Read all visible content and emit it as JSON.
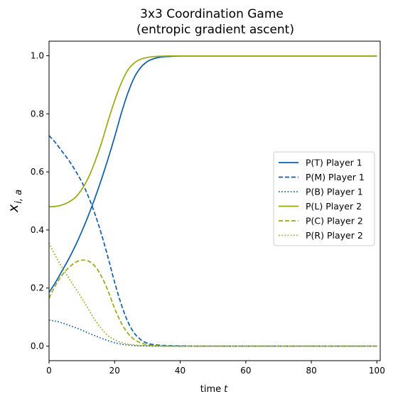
{
  "chart_data": {
    "type": "line",
    "title": "3x3 Coordination Game",
    "subtitle": "(entropic gradient ascent)",
    "xlabel": {
      "main": "time",
      "var": "t"
    },
    "ylabel": {
      "main": "x",
      "sub": "i, a"
    },
    "xlim": [
      0,
      101
    ],
    "ylim": [
      -0.05,
      1.05
    ],
    "xticks": [
      0,
      20,
      40,
      60,
      80,
      100
    ],
    "yticks": [
      0.0,
      0.2,
      0.4,
      0.6,
      0.8,
      1.0
    ],
    "ytick_labels": [
      "0.0",
      "0.2",
      "0.4",
      "0.6",
      "0.8",
      "1.0"
    ],
    "grid": false,
    "legend_position": "right",
    "x": [
      0,
      2,
      4,
      6,
      8,
      10,
      12,
      14,
      16,
      18,
      20,
      22,
      24,
      26,
      28,
      30,
      32,
      34,
      36,
      38,
      40,
      45,
      50,
      60,
      70,
      80,
      90,
      100
    ],
    "series": [
      {
        "name": "P(T) Player 1",
        "color": "#0a5fb4",
        "dash": "solid",
        "values": [
          0.185,
          0.22,
          0.26,
          0.3,
          0.345,
          0.395,
          0.45,
          0.51,
          0.575,
          0.645,
          0.72,
          0.8,
          0.87,
          0.925,
          0.96,
          0.98,
          0.99,
          0.995,
          0.997,
          0.998,
          0.999,
          0.999,
          0.999,
          0.999,
          0.999,
          0.999,
          0.999,
          0.999
        ]
      },
      {
        "name": "P(M) Player 1",
        "color": "#0a5fb4",
        "dash": "dashed",
        "values": [
          0.725,
          0.7,
          0.67,
          0.64,
          0.605,
          0.565,
          0.515,
          0.455,
          0.385,
          0.305,
          0.22,
          0.145,
          0.085,
          0.045,
          0.022,
          0.01,
          0.005,
          0.003,
          0.002,
          0.001,
          0.001,
          0.0,
          0.0,
          0.0,
          0.0,
          0.0,
          0.0,
          0.0
        ]
      },
      {
        "name": "P(B) Player 1",
        "color": "#0a5fb4",
        "dash": "dotted",
        "values": [
          0.09,
          0.086,
          0.08,
          0.072,
          0.064,
          0.055,
          0.045,
          0.036,
          0.027,
          0.019,
          0.012,
          0.007,
          0.004,
          0.002,
          0.001,
          0.001,
          0.0,
          0.0,
          0.0,
          0.0,
          0.0,
          0.0,
          0.0,
          0.0,
          0.0,
          0.0,
          0.0,
          0.0
        ]
      },
      {
        "name": "P(L) Player 2",
        "color": "#9aaa0c",
        "dash": "solid",
        "values": [
          0.48,
          0.481,
          0.486,
          0.496,
          0.512,
          0.54,
          0.58,
          0.635,
          0.7,
          0.775,
          0.845,
          0.905,
          0.95,
          0.975,
          0.988,
          0.994,
          0.997,
          0.998,
          0.999,
          0.999,
          0.999,
          0.999,
          0.999,
          0.999,
          0.999,
          0.999,
          0.999,
          0.999
        ]
      },
      {
        "name": "P(C) Player 2",
        "color": "#9aaa0c",
        "dash": "dashed",
        "values": [
          0.165,
          0.21,
          0.245,
          0.27,
          0.288,
          0.296,
          0.293,
          0.275,
          0.24,
          0.19,
          0.13,
          0.08,
          0.045,
          0.023,
          0.011,
          0.005,
          0.002,
          0.001,
          0.0,
          0.0,
          0.0,
          0.0,
          0.0,
          0.0,
          0.0,
          0.0,
          0.0,
          0.0
        ]
      },
      {
        "name": "P(R) Player 2",
        "color": "#9aaa0c",
        "dash": "dotted",
        "values": [
          0.355,
          0.31,
          0.27,
          0.235,
          0.2,
          0.165,
          0.128,
          0.09,
          0.06,
          0.036,
          0.022,
          0.013,
          0.007,
          0.004,
          0.002,
          0.001,
          0.001,
          0.0,
          0.0,
          0.0,
          0.0,
          0.0,
          0.0,
          0.0,
          0.0,
          0.0,
          0.0,
          0.0
        ]
      }
    ]
  }
}
